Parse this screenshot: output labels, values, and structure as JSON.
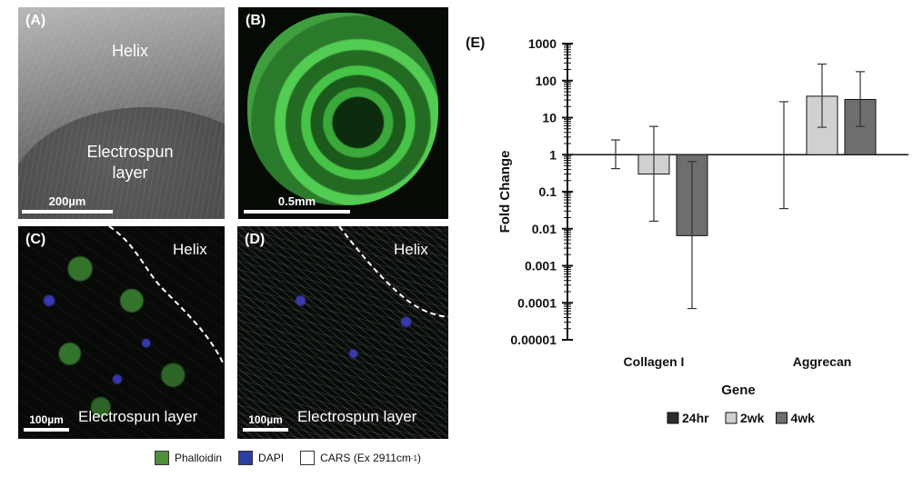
{
  "panels": {
    "a": {
      "label": "(A)",
      "helix": "Helix",
      "electrospun": "Electrospun\nlayer",
      "scale": "200µm"
    },
    "b": {
      "label": "(B)",
      "scale": "0.5mm"
    },
    "c": {
      "label": "(C)",
      "helix": "Helix",
      "electrospun": "Electrospun layer",
      "scale": "100µm"
    },
    "d": {
      "label": "(D)",
      "helix": "Helix",
      "electrospun": "Electrospun layer",
      "scale": "100µm"
    }
  },
  "stain_legend": [
    {
      "label": "Phalloidin",
      "color": "#4f8f3a"
    },
    {
      "label": "DAPI",
      "color": "#2b3fa0"
    },
    {
      "label": "CARS (Ex 2911cm",
      "sup": "-1",
      "tail": ")",
      "color": "#ffffff"
    }
  ],
  "chart_data": {
    "type": "bar",
    "panel_label": "(E)",
    "categories": [
      "Collagen I",
      "Aggrecan"
    ],
    "xlabel": "Gene",
    "ylabel": "Fold Change",
    "yscale": "log",
    "ylim": [
      1e-05,
      1000
    ],
    "baseline": 1,
    "yticks": [
      "1000",
      "100",
      "10",
      "1",
      "0.1",
      "0.01",
      "0.001",
      "0.0001",
      "0.00001"
    ],
    "series": [
      {
        "name": "24hr",
        "color": "#2b2b2b",
        "values": [
          1,
          1
        ],
        "err_low": [
          0.42,
          0.035
        ],
        "err_high": [
          2.5,
          27
        ]
      },
      {
        "name": "2wk",
        "color": "#d0d0d0",
        "values": [
          0.3,
          38
        ],
        "err_low": [
          0.016,
          5.5
        ],
        "err_high": [
          5.8,
          280
        ]
      },
      {
        "name": "4wk",
        "color": "#6e6e6e",
        "values": [
          0.0065,
          31
        ],
        "err_low": [
          7e-05,
          5.8
        ],
        "err_high": [
          0.65,
          175
        ]
      }
    ],
    "legend_position": "bottom"
  }
}
